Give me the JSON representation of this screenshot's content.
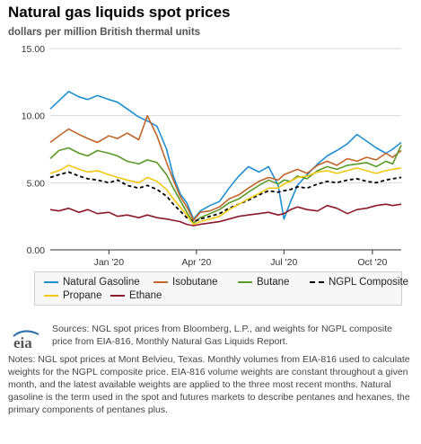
{
  "header": {
    "title": "Natural gas liquids spot prices",
    "subtitle": "dollars per million British thermal units"
  },
  "chart_data": {
    "type": "line",
    "title": "Natural gas liquids spot prices",
    "ylabel": "dollars per million British thermal units",
    "xlabel": "",
    "x_range": [
      "2019-11-01",
      "2020-10-31"
    ],
    "ylim": [
      0,
      15
    ],
    "y_ticks": [
      0,
      5,
      10,
      15
    ],
    "y_tick_labels": [
      "0.00",
      "5.00",
      "10.00",
      "15.00"
    ],
    "x_ticks": [
      {
        "date": "2020-01-01",
        "label": "Jan '20"
      },
      {
        "date": "2020-04-01",
        "label": "Apr '20"
      },
      {
        "date": "2020-07-01",
        "label": "Jul '20"
      },
      {
        "date": "2020-10-01",
        "label": "Oct '20"
      }
    ],
    "grid": true,
    "legend_position": "bottom",
    "series": [
      {
        "name": "Natural Gasoline",
        "color": "#1f8fd0",
        "style": "solid",
        "points": [
          [
            "2019-11-01",
            10.5
          ],
          [
            "2019-11-10",
            11.1
          ],
          [
            "2019-11-20",
            11.8
          ],
          [
            "2019-12-01",
            11.4
          ],
          [
            "2019-12-10",
            11.2
          ],
          [
            "2019-12-20",
            11.5
          ],
          [
            "2020-01-01",
            11.2
          ],
          [
            "2020-01-10",
            11.0
          ],
          [
            "2020-01-20",
            10.5
          ],
          [
            "2020-02-01",
            9.9
          ],
          [
            "2020-02-10",
            9.6
          ],
          [
            "2020-02-20",
            9.2
          ],
          [
            "2020-03-01",
            7.5
          ],
          [
            "2020-03-08",
            5.5
          ],
          [
            "2020-03-15",
            4.2
          ],
          [
            "2020-03-22",
            3.5
          ],
          [
            "2020-03-29",
            2.3
          ],
          [
            "2020-04-05",
            2.9
          ],
          [
            "2020-04-15",
            3.3
          ],
          [
            "2020-04-25",
            3.6
          ],
          [
            "2020-05-05",
            4.6
          ],
          [
            "2020-05-15",
            5.5
          ],
          [
            "2020-05-25",
            6.2
          ],
          [
            "2020-06-05",
            5.8
          ],
          [
            "2020-06-15",
            6.2
          ],
          [
            "2020-06-25",
            4.8
          ],
          [
            "2020-07-01",
            2.3
          ],
          [
            "2020-07-08",
            3.6
          ],
          [
            "2020-07-15",
            4.8
          ],
          [
            "2020-07-25",
            5.6
          ],
          [
            "2020-08-05",
            6.4
          ],
          [
            "2020-08-15",
            7.0
          ],
          [
            "2020-08-25",
            7.4
          ],
          [
            "2020-09-05",
            7.9
          ],
          [
            "2020-09-15",
            8.6
          ],
          [
            "2020-09-25",
            8.1
          ],
          [
            "2020-10-05",
            7.6
          ],
          [
            "2020-10-15",
            7.2
          ],
          [
            "2020-10-22",
            7.5
          ],
          [
            "2020-10-31",
            8.0
          ]
        ]
      },
      {
        "name": "Isobutane",
        "color": "#c0652b",
        "style": "solid",
        "points": [
          [
            "2019-11-01",
            8.0
          ],
          [
            "2019-11-10",
            8.5
          ],
          [
            "2019-11-20",
            9.0
          ],
          [
            "2019-12-01",
            8.6
          ],
          [
            "2019-12-10",
            8.3
          ],
          [
            "2019-12-20",
            8.0
          ],
          [
            "2020-01-01",
            8.5
          ],
          [
            "2020-01-10",
            8.3
          ],
          [
            "2020-01-20",
            8.7
          ],
          [
            "2020-02-01",
            8.2
          ],
          [
            "2020-02-10",
            10.0
          ],
          [
            "2020-02-20",
            8.5
          ],
          [
            "2020-03-01",
            6.5
          ],
          [
            "2020-03-08",
            5.2
          ],
          [
            "2020-03-15",
            4.0
          ],
          [
            "2020-03-22",
            3.2
          ],
          [
            "2020-03-29",
            2.2
          ],
          [
            "2020-04-05",
            2.8
          ],
          [
            "2020-04-15",
            2.9
          ],
          [
            "2020-04-25",
            3.2
          ],
          [
            "2020-05-05",
            3.8
          ],
          [
            "2020-05-15",
            4.1
          ],
          [
            "2020-05-25",
            4.6
          ],
          [
            "2020-06-05",
            5.1
          ],
          [
            "2020-06-15",
            5.4
          ],
          [
            "2020-06-25",
            5.2
          ],
          [
            "2020-07-01",
            5.6
          ],
          [
            "2020-07-08",
            5.8
          ],
          [
            "2020-07-15",
            6.0
          ],
          [
            "2020-07-25",
            5.7
          ],
          [
            "2020-08-05",
            6.3
          ],
          [
            "2020-08-15",
            6.6
          ],
          [
            "2020-08-25",
            6.3
          ],
          [
            "2020-09-05",
            6.8
          ],
          [
            "2020-09-15",
            6.6
          ],
          [
            "2020-09-25",
            6.9
          ],
          [
            "2020-10-05",
            6.7
          ],
          [
            "2020-10-15",
            7.2
          ],
          [
            "2020-10-22",
            6.9
          ],
          [
            "2020-10-31",
            7.4
          ]
        ]
      },
      {
        "name": "Butane",
        "color": "#5a9a28",
        "style": "solid",
        "points": [
          [
            "2019-11-01",
            6.8
          ],
          [
            "2019-11-10",
            7.4
          ],
          [
            "2019-11-20",
            7.6
          ],
          [
            "2019-12-01",
            7.2
          ],
          [
            "2019-12-10",
            7.0
          ],
          [
            "2019-12-20",
            7.4
          ],
          [
            "2020-01-01",
            7.2
          ],
          [
            "2020-01-10",
            7.0
          ],
          [
            "2020-01-20",
            6.6
          ],
          [
            "2020-02-01",
            6.4
          ],
          [
            "2020-02-10",
            6.7
          ],
          [
            "2020-02-20",
            6.5
          ],
          [
            "2020-03-01",
            5.6
          ],
          [
            "2020-03-08",
            4.6
          ],
          [
            "2020-03-15",
            3.7
          ],
          [
            "2020-03-22",
            2.8
          ],
          [
            "2020-03-29",
            2.0
          ],
          [
            "2020-04-05",
            2.4
          ],
          [
            "2020-04-15",
            2.7
          ],
          [
            "2020-04-25",
            3.0
          ],
          [
            "2020-05-05",
            3.5
          ],
          [
            "2020-05-15",
            3.8
          ],
          [
            "2020-05-25",
            4.3
          ],
          [
            "2020-06-05",
            4.8
          ],
          [
            "2020-06-15",
            5.2
          ],
          [
            "2020-06-25",
            4.9
          ],
          [
            "2020-07-01",
            5.2
          ],
          [
            "2020-07-08",
            5.1
          ],
          [
            "2020-07-15",
            5.5
          ],
          [
            "2020-07-25",
            5.3
          ],
          [
            "2020-08-05",
            5.9
          ],
          [
            "2020-08-15",
            6.2
          ],
          [
            "2020-08-25",
            6.0
          ],
          [
            "2020-09-05",
            6.3
          ],
          [
            "2020-09-15",
            6.4
          ],
          [
            "2020-09-25",
            6.5
          ],
          [
            "2020-10-05",
            6.2
          ],
          [
            "2020-10-15",
            6.6
          ],
          [
            "2020-10-22",
            6.4
          ],
          [
            "2020-10-31",
            7.8
          ]
        ]
      },
      {
        "name": "NGPL Composite",
        "color": "#000000",
        "style": "dashed",
        "points": [
          [
            "2019-11-01",
            5.4
          ],
          [
            "2019-11-10",
            5.6
          ],
          [
            "2019-11-20",
            5.8
          ],
          [
            "2019-12-01",
            5.5
          ],
          [
            "2019-12-10",
            5.3
          ],
          [
            "2019-12-20",
            5.2
          ],
          [
            "2020-01-01",
            5.0
          ],
          [
            "2020-01-10",
            5.2
          ],
          [
            "2020-01-20",
            4.8
          ],
          [
            "2020-02-01",
            4.6
          ],
          [
            "2020-02-10",
            4.8
          ],
          [
            "2020-02-20",
            4.5
          ],
          [
            "2020-03-01",
            4.0
          ],
          [
            "2020-03-08",
            3.4
          ],
          [
            "2020-03-15",
            2.9
          ],
          [
            "2020-03-22",
            2.4
          ],
          [
            "2020-03-29",
            2.1
          ],
          [
            "2020-04-05",
            2.3
          ],
          [
            "2020-04-15",
            2.5
          ],
          [
            "2020-04-25",
            2.7
          ],
          [
            "2020-05-05",
            3.1
          ],
          [
            "2020-05-15",
            3.4
          ],
          [
            "2020-05-25",
            3.7
          ],
          [
            "2020-06-05",
            4.1
          ],
          [
            "2020-06-15",
            4.4
          ],
          [
            "2020-06-25",
            4.3
          ],
          [
            "2020-07-01",
            4.4
          ],
          [
            "2020-07-08",
            4.5
          ],
          [
            "2020-07-15",
            4.7
          ],
          [
            "2020-07-25",
            4.6
          ],
          [
            "2020-08-05",
            4.9
          ],
          [
            "2020-08-15",
            5.1
          ],
          [
            "2020-08-25",
            5.0
          ],
          [
            "2020-09-05",
            5.2
          ],
          [
            "2020-09-15",
            5.3
          ],
          [
            "2020-09-25",
            5.1
          ],
          [
            "2020-10-05",
            5.0
          ],
          [
            "2020-10-15",
            5.2
          ],
          [
            "2020-10-22",
            5.3
          ],
          [
            "2020-10-31",
            5.4
          ]
        ]
      },
      {
        "name": "Propane",
        "color": "#f2c811",
        "style": "solid",
        "points": [
          [
            "2019-11-01",
            5.7
          ],
          [
            "2019-11-10",
            5.9
          ],
          [
            "2019-11-20",
            6.3
          ],
          [
            "2019-12-01",
            6.0
          ],
          [
            "2019-12-10",
            5.8
          ],
          [
            "2019-12-20",
            5.9
          ],
          [
            "2020-01-01",
            5.6
          ],
          [
            "2020-01-10",
            5.4
          ],
          [
            "2020-01-20",
            5.2
          ],
          [
            "2020-02-01",
            5.0
          ],
          [
            "2020-02-10",
            5.4
          ],
          [
            "2020-02-20",
            5.1
          ],
          [
            "2020-03-01",
            4.5
          ],
          [
            "2020-03-08",
            3.8
          ],
          [
            "2020-03-15",
            3.2
          ],
          [
            "2020-03-22",
            2.6
          ],
          [
            "2020-03-29",
            1.9
          ],
          [
            "2020-04-05",
            2.1
          ],
          [
            "2020-04-15",
            2.3
          ],
          [
            "2020-04-25",
            2.5
          ],
          [
            "2020-05-05",
            3.0
          ],
          [
            "2020-05-15",
            3.4
          ],
          [
            "2020-05-25",
            3.8
          ],
          [
            "2020-06-05",
            4.2
          ],
          [
            "2020-06-15",
            4.6
          ],
          [
            "2020-06-25",
            4.6
          ],
          [
            "2020-07-01",
            4.9
          ],
          [
            "2020-07-08",
            5.1
          ],
          [
            "2020-07-15",
            5.4
          ],
          [
            "2020-07-25",
            5.5
          ],
          [
            "2020-08-05",
            5.8
          ],
          [
            "2020-08-15",
            5.9
          ],
          [
            "2020-08-25",
            5.7
          ],
          [
            "2020-09-05",
            5.9
          ],
          [
            "2020-09-15",
            6.1
          ],
          [
            "2020-09-25",
            5.9
          ],
          [
            "2020-10-05",
            5.7
          ],
          [
            "2020-10-15",
            5.9
          ],
          [
            "2020-10-22",
            6.0
          ],
          [
            "2020-10-31",
            6.1
          ]
        ]
      },
      {
        "name": "Ethane",
        "color": "#8b1a2b",
        "style": "solid",
        "points": [
          [
            "2019-11-01",
            3.0
          ],
          [
            "2019-11-10",
            2.9
          ],
          [
            "2019-11-20",
            3.1
          ],
          [
            "2019-12-01",
            2.8
          ],
          [
            "2019-12-10",
            3.0
          ],
          [
            "2019-12-20",
            2.7
          ],
          [
            "2020-01-01",
            2.8
          ],
          [
            "2020-01-10",
            2.5
          ],
          [
            "2020-01-20",
            2.6
          ],
          [
            "2020-02-01",
            2.4
          ],
          [
            "2020-02-10",
            2.6
          ],
          [
            "2020-02-20",
            2.4
          ],
          [
            "2020-03-01",
            2.3
          ],
          [
            "2020-03-08",
            2.2
          ],
          [
            "2020-03-15",
            2.1
          ],
          [
            "2020-03-22",
            1.9
          ],
          [
            "2020-03-29",
            1.8
          ],
          [
            "2020-04-05",
            1.9
          ],
          [
            "2020-04-15",
            2.0
          ],
          [
            "2020-04-25",
            2.1
          ],
          [
            "2020-05-05",
            2.3
          ],
          [
            "2020-05-15",
            2.5
          ],
          [
            "2020-05-25",
            2.6
          ],
          [
            "2020-06-05",
            2.7
          ],
          [
            "2020-06-15",
            2.8
          ],
          [
            "2020-06-25",
            2.6
          ],
          [
            "2020-07-01",
            2.7
          ],
          [
            "2020-07-08",
            3.0
          ],
          [
            "2020-07-15",
            3.2
          ],
          [
            "2020-07-25",
            3.0
          ],
          [
            "2020-08-05",
            2.9
          ],
          [
            "2020-08-15",
            3.3
          ],
          [
            "2020-08-25",
            3.1
          ],
          [
            "2020-09-05",
            2.7
          ],
          [
            "2020-09-15",
            3.0
          ],
          [
            "2020-09-25",
            3.1
          ],
          [
            "2020-10-05",
            3.3
          ],
          [
            "2020-10-15",
            3.4
          ],
          [
            "2020-10-22",
            3.3
          ],
          [
            "2020-10-31",
            3.4
          ]
        ]
      }
    ]
  },
  "legend": {
    "items": [
      {
        "name": "Natural Gasoline",
        "color": "#1f8fd0",
        "style": "solid"
      },
      {
        "name": "Isobutane",
        "color": "#c0652b",
        "style": "solid"
      },
      {
        "name": "Butane",
        "color": "#5a9a28",
        "style": "solid"
      },
      {
        "name": "NGPL Composite",
        "color": "#000000",
        "style": "dashed"
      },
      {
        "name": "Propane",
        "color": "#f2c811",
        "style": "solid"
      },
      {
        "name": "Ethane",
        "color": "#8b1a2b",
        "style": "solid"
      }
    ]
  },
  "footer": {
    "logo_text": "eia",
    "sources": "Sources: NGL spot prices from Bloomberg, L.P., and weights for NGPL composite price from EIA-816, Monthly Natural Gas Liquids Report.",
    "notes": "Notes: NGL spot prices at Mont Belvieu, Texas. Monthly volumes from EIA-816 used to calculate weights for the NGPL composite price. EIA-816 volume weights are constant throughout a given month, and the latest available weights are applied to the three most recent months. Natural gasoline is the term used in the spot and futures markets to describe pentanes and hexanes, the primary components of pentanes plus."
  }
}
